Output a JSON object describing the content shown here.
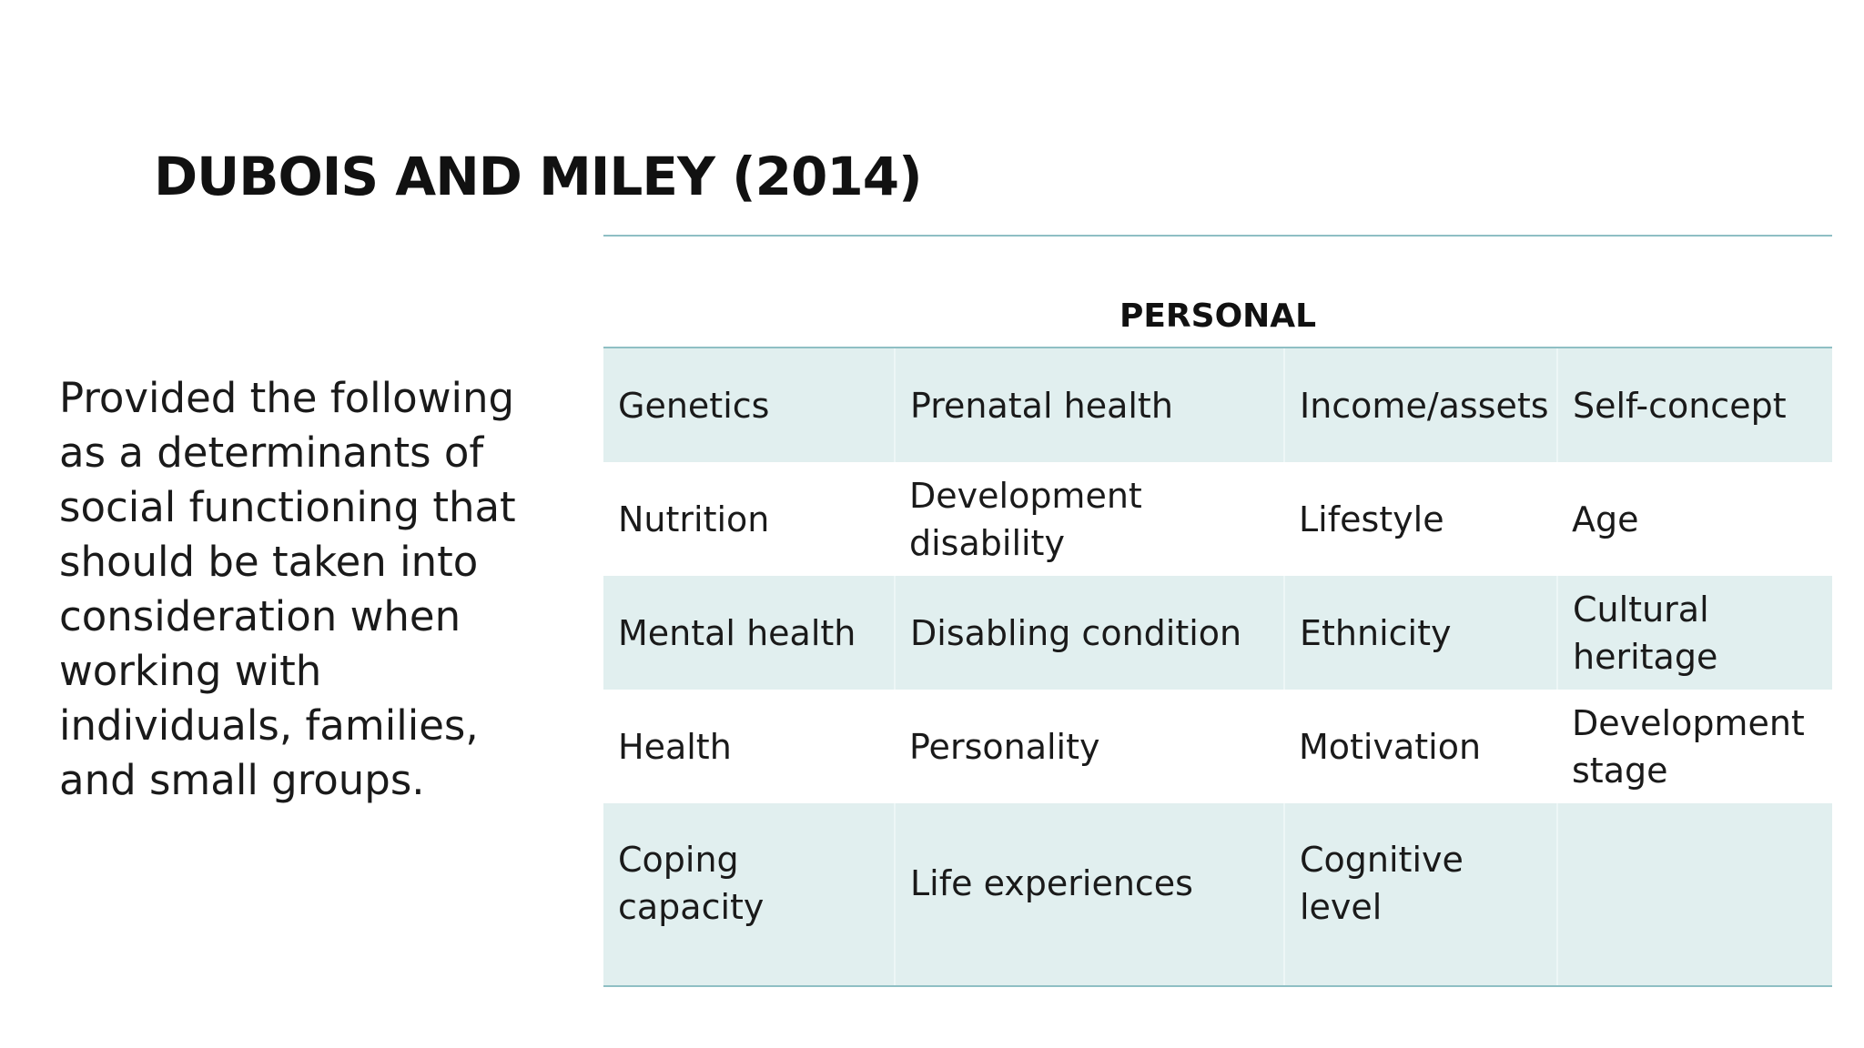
{
  "slide": {
    "title": "DUBOIS AND MILEY (2014)",
    "description": "Provided the following as a determinants of social functioning that should be taken into consideration when working with individuals, families, and small groups."
  },
  "table": {
    "header": "PERSONAL",
    "rows": [
      [
        "Genetics",
        "Prenatal health",
        "Income/assets",
        "Self-concept"
      ],
      [
        "Nutrition",
        "Development disability",
        "Lifestyle",
        "Age"
      ],
      [
        "Mental health",
        "Disabling condition",
        "Ethnicity",
        "Cultural heritage"
      ],
      [
        "Health",
        "Personality",
        "Motivation",
        "Development stage"
      ],
      [
        "Coping capacity",
        "Life experiences",
        "Cognitive level",
        ""
      ]
    ]
  },
  "colors": {
    "band": "#e1efef",
    "rule": "#8fbfc4"
  }
}
